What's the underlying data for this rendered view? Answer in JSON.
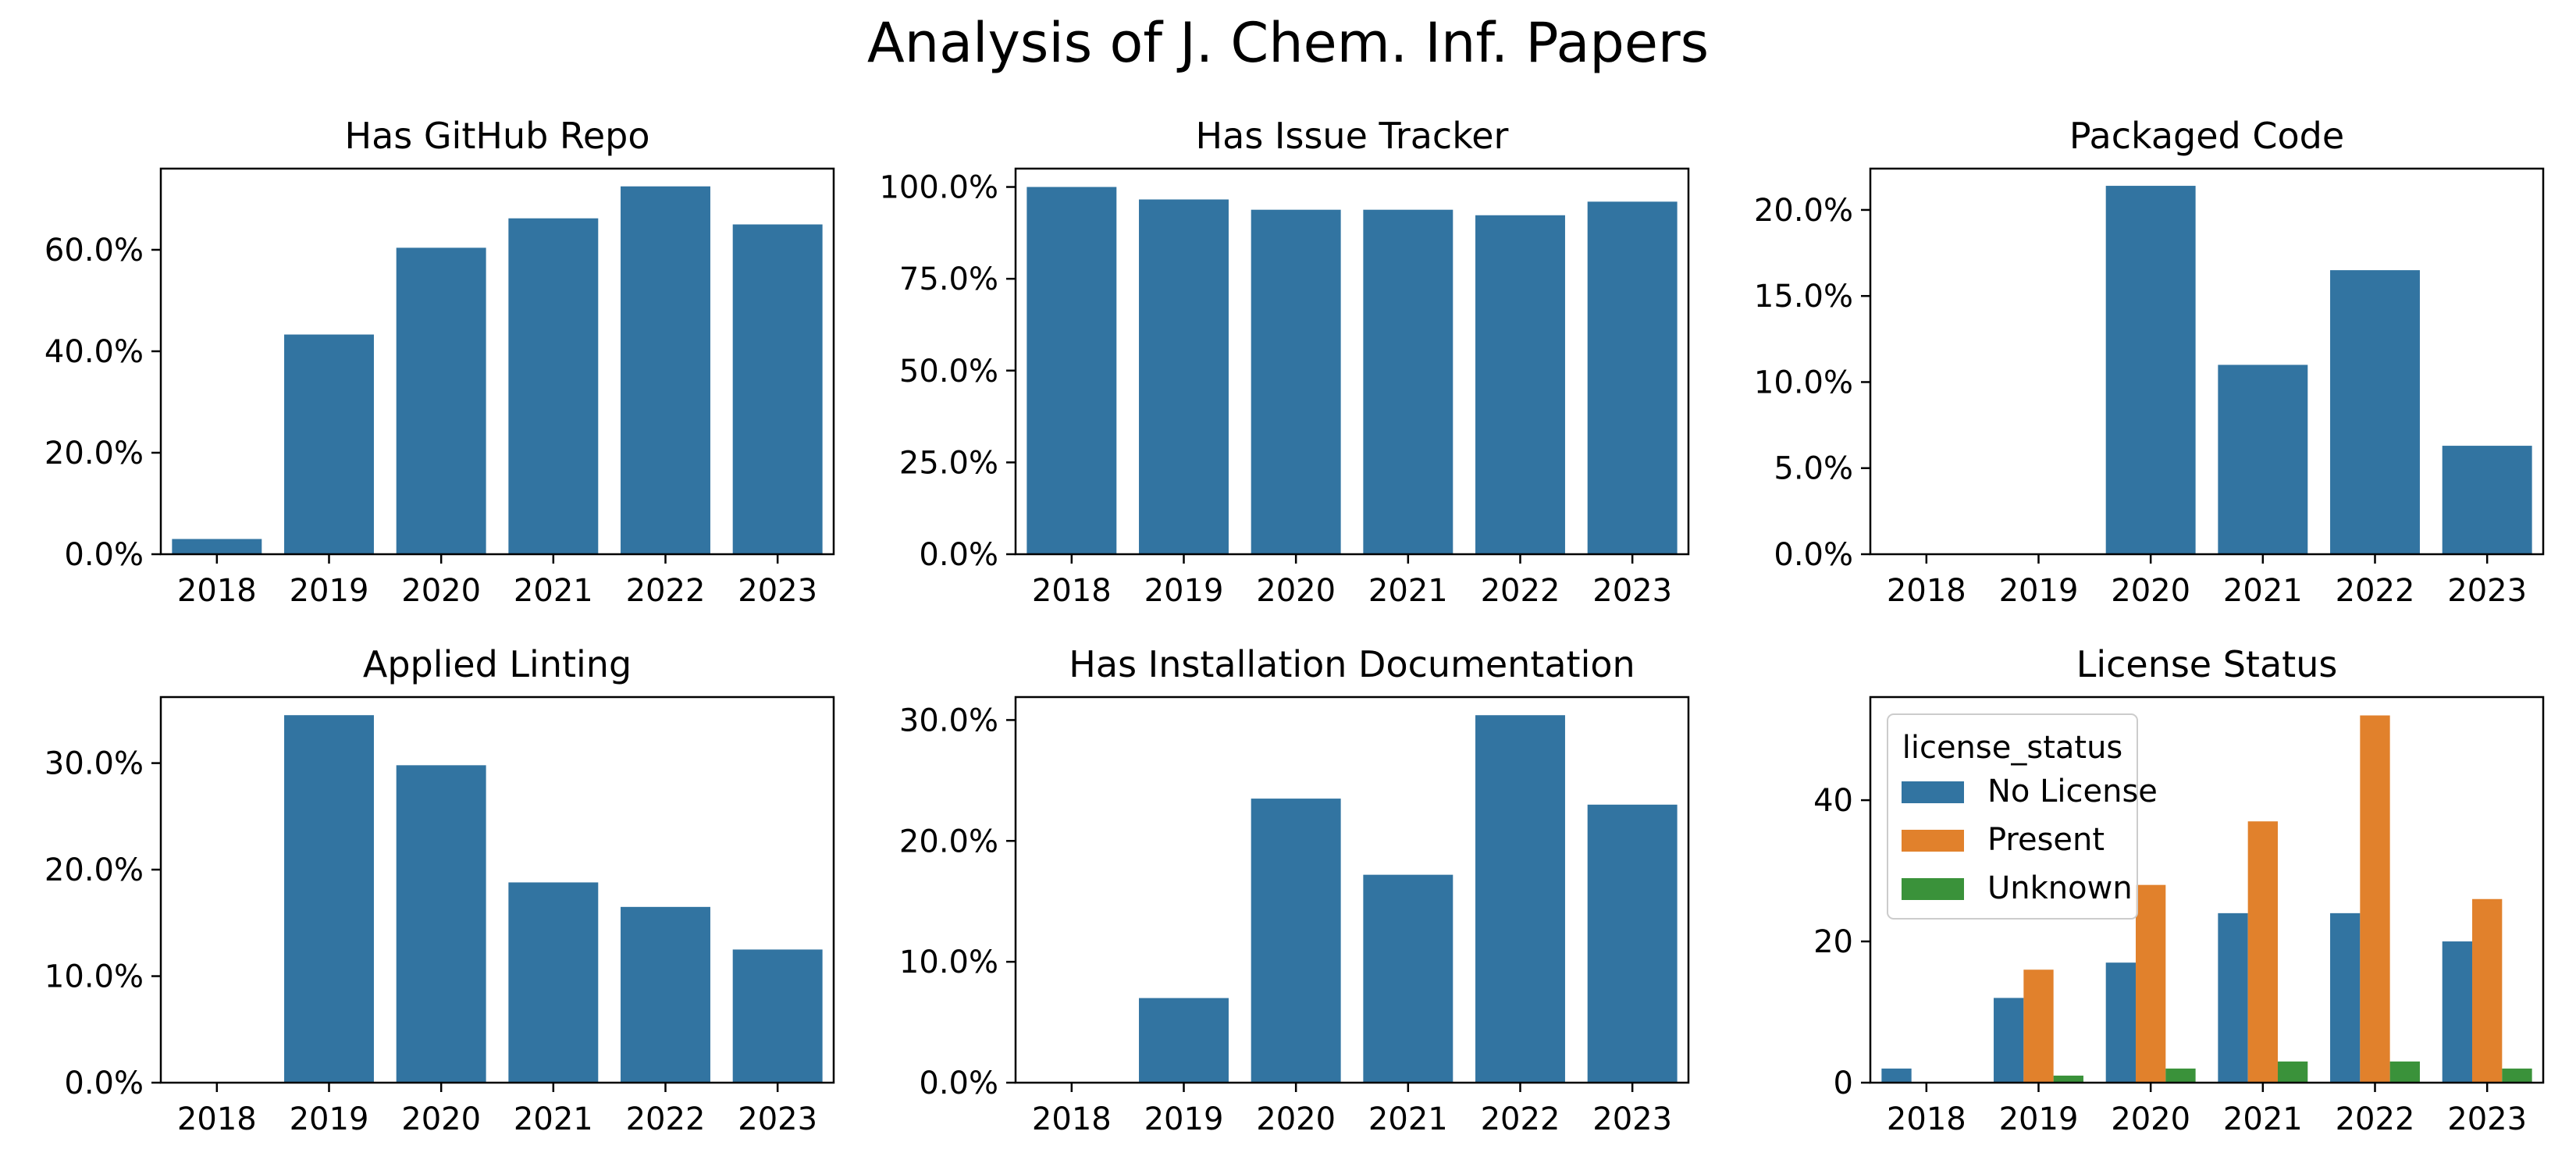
{
  "figure": {
    "title": "Analysis of J. Chem. Inf. Papers"
  },
  "colors": {
    "bar": "#3274a1",
    "no_license": "#3274a1",
    "present": "#e1812c",
    "unknown": "#3a923a"
  },
  "chart_data": [
    {
      "type": "bar",
      "title": "Has GitHub Repo",
      "categories": [
        "2018",
        "2019",
        "2020",
        "2021",
        "2022",
        "2023"
      ],
      "values": [
        3.0,
        43.3,
        60.4,
        66.2,
        72.5,
        65.0
      ],
      "ylim": [
        0,
        76
      ],
      "yticks": [
        0,
        20,
        40,
        60
      ],
      "ytick_labels": [
        "0.0%",
        "20.0%",
        "40.0%",
        "60.0%"
      ]
    },
    {
      "type": "bar",
      "title": "Has Issue Tracker",
      "categories": [
        "2018",
        "2019",
        "2020",
        "2021",
        "2022",
        "2023"
      ],
      "values": [
        100.0,
        96.6,
        93.8,
        93.8,
        92.3,
        96.0
      ],
      "ylim": [
        0,
        105
      ],
      "yticks": [
        0,
        25,
        50,
        75,
        100
      ],
      "ytick_labels": [
        "0.0%",
        "25.0%",
        "50.0%",
        "75.0%",
        "100.0%"
      ]
    },
    {
      "type": "bar",
      "title": "Packaged Code",
      "categories": [
        "2018",
        "2019",
        "2020",
        "2021",
        "2022",
        "2023"
      ],
      "values": [
        0,
        0,
        21.4,
        11.0,
        16.5,
        6.3
      ],
      "ylim": [
        0,
        22.4
      ],
      "yticks": [
        0,
        5,
        10,
        15,
        20
      ],
      "ytick_labels": [
        "0.0%",
        "5.0%",
        "10.0%",
        "15.0%",
        "20.0%"
      ]
    },
    {
      "type": "bar",
      "title": "Applied Linting",
      "categories": [
        "2018",
        "2019",
        "2020",
        "2021",
        "2022",
        "2023"
      ],
      "values": [
        0,
        34.5,
        29.8,
        18.8,
        16.5,
        12.5
      ],
      "ylim": [
        0,
        36.2
      ],
      "yticks": [
        0,
        10,
        20,
        30
      ],
      "ytick_labels": [
        "0.0%",
        "10.0%",
        "20.0%",
        "30.0%"
      ]
    },
    {
      "type": "bar",
      "title": "Has Installation Documentation",
      "categories": [
        "2018",
        "2019",
        "2020",
        "2021",
        "2022",
        "2023"
      ],
      "values": [
        0,
        7.0,
        23.5,
        17.2,
        30.4,
        23.0
      ],
      "ylim": [
        0,
        31.9
      ],
      "yticks": [
        0,
        10,
        20,
        30
      ],
      "ytick_labels": [
        "0.0%",
        "10.0%",
        "20.0%",
        "30.0%"
      ]
    },
    {
      "type": "bar",
      "title": "License Status",
      "categories": [
        "2018",
        "2019",
        "2020",
        "2021",
        "2022",
        "2023"
      ],
      "series": [
        {
          "name": "No License",
          "values": [
            2,
            12,
            17,
            24,
            24,
            20
          ]
        },
        {
          "name": "Present",
          "values": [
            0,
            16,
            28,
            37,
            52,
            26
          ]
        },
        {
          "name": "Unknown",
          "values": [
            0,
            1,
            2,
            3,
            3,
            2
          ]
        }
      ],
      "ylim": [
        0,
        54.6
      ],
      "yticks": [
        0,
        20,
        40
      ],
      "ytick_labels": [
        "0",
        "20",
        "40"
      ],
      "legend": {
        "title": "license_status",
        "placement": "upper-left"
      }
    }
  ]
}
